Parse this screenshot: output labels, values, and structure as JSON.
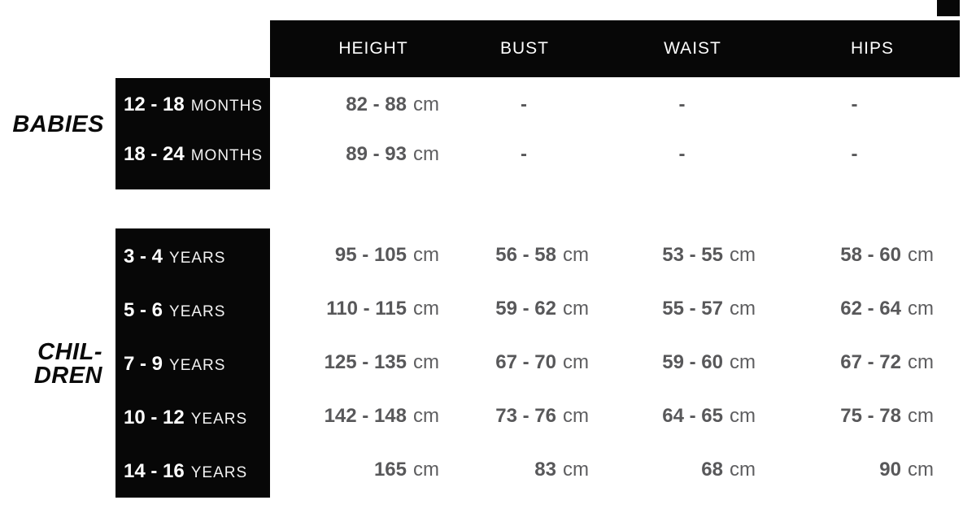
{
  "colors": {
    "box_black": "#070707",
    "value_gray": "#58585a",
    "header_text": "#fefefe",
    "unit_white": "#f2f2f2",
    "background": "#ffffff"
  },
  "chart_data": {
    "type": "table",
    "columns": [
      "HEIGHT",
      "BUST",
      "WAIST",
      "HIPS"
    ],
    "unit": "cm",
    "groups": [
      {
        "label": "BABIES",
        "label_lines": [
          "BABIES"
        ],
        "rows": [
          {
            "size": "12 - 18",
            "size_unit": "MONTHS",
            "cells": [
              {
                "value": "82 - 88",
                "unit": "cm"
              },
              {
                "value": "-",
                "unit": ""
              },
              {
                "value": "-",
                "unit": ""
              },
              {
                "value": "-",
                "unit": ""
              }
            ]
          },
          {
            "size": "18 - 24",
            "size_unit": "MONTHS",
            "cells": [
              {
                "value": "89 - 93",
                "unit": "cm"
              },
              {
                "value": "-",
                "unit": ""
              },
              {
                "value": "-",
                "unit": ""
              },
              {
                "value": "-",
                "unit": ""
              }
            ]
          }
        ]
      },
      {
        "label": "CHILDREN",
        "label_lines": [
          "CHIL-",
          "DREN"
        ],
        "rows": [
          {
            "size": "3 - 4",
            "size_unit": "YEARS",
            "cells": [
              {
                "value": "95 - 105",
                "unit": "cm"
              },
              {
                "value": "56 - 58",
                "unit": "cm"
              },
              {
                "value": "53 - 55",
                "unit": "cm"
              },
              {
                "value": "58 - 60",
                "unit": "cm"
              }
            ]
          },
          {
            "size": "5 - 6",
            "size_unit": "YEARS",
            "cells": [
              {
                "value": "110 - 115",
                "unit": "cm"
              },
              {
                "value": "59 - 62",
                "unit": "cm"
              },
              {
                "value": "55 - 57",
                "unit": "cm"
              },
              {
                "value": "62 - 64",
                "unit": "cm"
              }
            ]
          },
          {
            "size": "7 - 9",
            "size_unit": "YEARS",
            "cells": [
              {
                "value": "125 - 135",
                "unit": "cm"
              },
              {
                "value": "67 - 70",
                "unit": "cm"
              },
              {
                "value": "59 - 60",
                "unit": "cm"
              },
              {
                "value": "67 - 72",
                "unit": "cm"
              }
            ]
          },
          {
            "size": "10 - 12",
            "size_unit": "YEARS",
            "cells": [
              {
                "value": "142 - 148",
                "unit": "cm"
              },
              {
                "value": "73 - 76",
                "unit": "cm"
              },
              {
                "value": "64 - 65",
                "unit": "cm"
              },
              {
                "value": "75 - 78",
                "unit": "cm"
              }
            ]
          },
          {
            "size": "14 - 16",
            "size_unit": "YEARS",
            "cells": [
              {
                "value": "165",
                "unit": "cm"
              },
              {
                "value": "83",
                "unit": "cm"
              },
              {
                "value": "68",
                "unit": "cm"
              },
              {
                "value": "90",
                "unit": "cm"
              }
            ]
          }
        ]
      }
    ]
  }
}
